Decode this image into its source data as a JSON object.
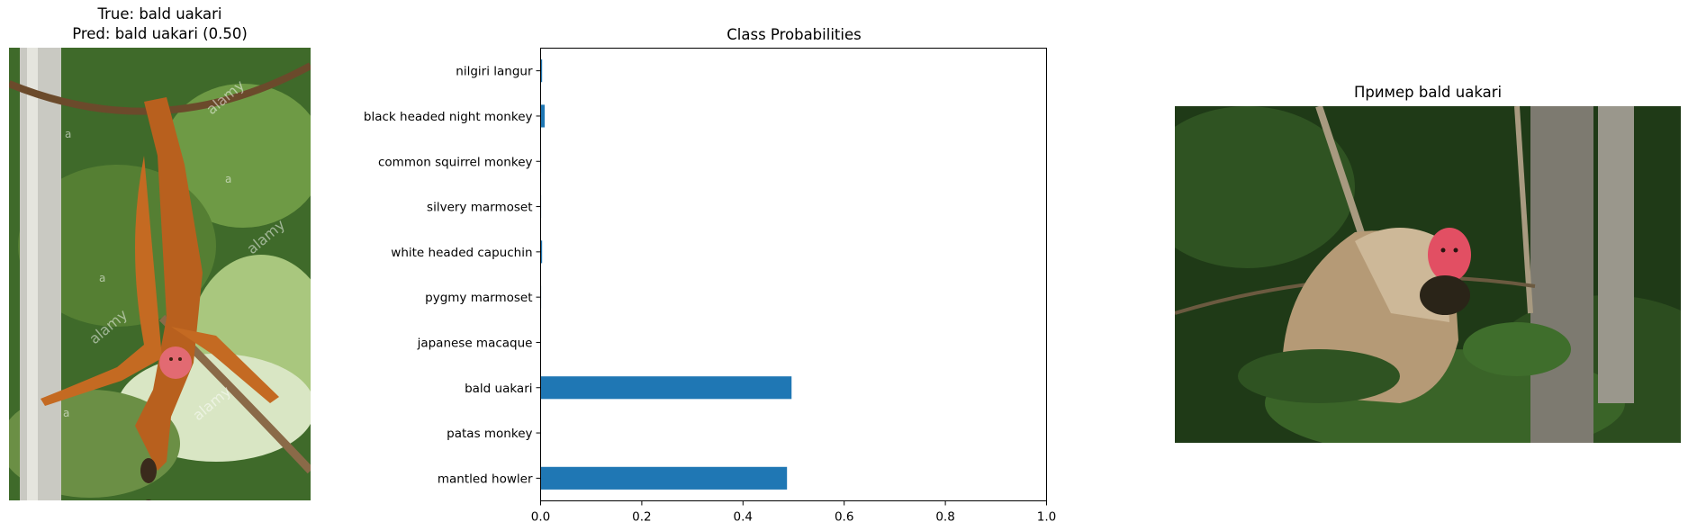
{
  "left_panel": {
    "title_line1": "True: bald uakari",
    "title_line2": "Pred: bald uakari (0.50)",
    "photo_icon": "monkey-photo",
    "watermark_letters": "a",
    "watermark_brand": "alamy"
  },
  "right_panel": {
    "title": "Пример bald uakari",
    "photo_icon": "monkey-photo"
  },
  "chart_data": {
    "type": "bar",
    "orientation": "horizontal",
    "title": "Class Probabilities",
    "categories": [
      "mantled howler",
      "patas monkey",
      "bald uakari",
      "japanese macaque",
      "pygmy marmoset",
      "white headed capuchin",
      "silvery marmoset",
      "common squirrel monkey",
      "black headed night monkey",
      "nilgiri langur"
    ],
    "values": [
      0.487,
      0.0,
      0.496,
      0.0,
      0.001,
      0.003,
      0.001,
      0.001,
      0.008,
      0.003
    ],
    "xlim": [
      0.0,
      1.0
    ],
    "xticks": [
      "0.0",
      "0.2",
      "0.4",
      "0.6",
      "0.8",
      "1.0"
    ],
    "xlabel": "",
    "ylabel": "",
    "grid": false,
    "bar_color": "#1f77b4"
  }
}
